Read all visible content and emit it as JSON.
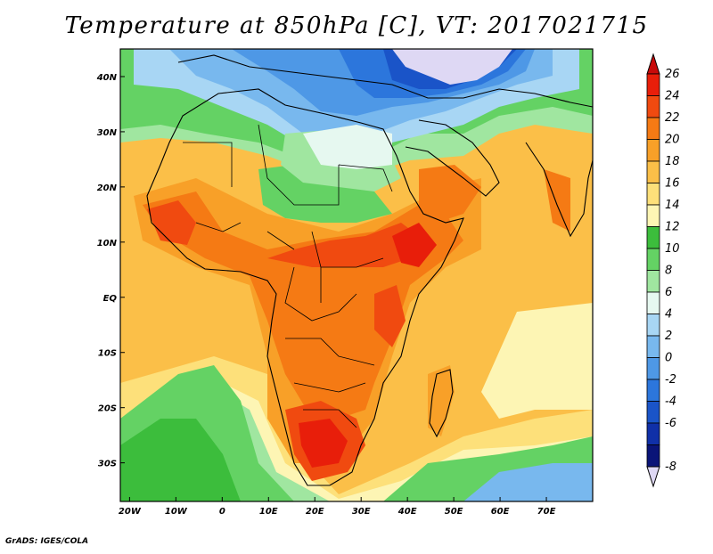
{
  "title": "Temperature at 850hPa [C], VT: 2017021715",
  "footer": "GrADS: IGES/COLA",
  "map": {
    "lon_range": [
      -22,
      80
    ],
    "lat_range": [
      -37,
      45
    ],
    "lon_ticks": [
      {
        "value": -20,
        "label": "20W"
      },
      {
        "value": -10,
        "label": "10W"
      },
      {
        "value": 0,
        "label": "0"
      },
      {
        "value": 10,
        "label": "10E"
      },
      {
        "value": 20,
        "label": "20E"
      },
      {
        "value": 30,
        "label": "30E"
      },
      {
        "value": 40,
        "label": "40E"
      },
      {
        "value": 50,
        "label": "50E"
      },
      {
        "value": 60,
        "label": "60E"
      },
      {
        "value": 70,
        "label": "70E"
      }
    ],
    "lat_ticks": [
      {
        "value": 40,
        "label": "40N"
      },
      {
        "value": 30,
        "label": "30N"
      },
      {
        "value": 20,
        "label": "20N"
      },
      {
        "value": 10,
        "label": "10N"
      },
      {
        "value": 0,
        "label": "EQ"
      },
      {
        "value": -10,
        "label": "10S"
      },
      {
        "value": -20,
        "label": "20S"
      },
      {
        "value": -30,
        "label": "30S"
      }
    ]
  },
  "colorbar": {
    "levels": [
      {
        "label": "26",
        "color": "#e81e0a"
      },
      {
        "label": "24",
        "color": "#f04a10"
      },
      {
        "label": "22",
        "color": "#f57a14"
      },
      {
        "label": "20",
        "color": "#f8a028"
      },
      {
        "label": "18",
        "color": "#fbbf48"
      },
      {
        "label": "16",
        "color": "#fde07a"
      },
      {
        "label": "14",
        "color": "#fdf5b4"
      },
      {
        "label": "12",
        "color": "#3cbd3c"
      },
      {
        "label": "10",
        "color": "#64d264"
      },
      {
        "label": "8",
        "color": "#a0e6a0"
      },
      {
        "label": "6",
        "color": "#e6f8f0"
      },
      {
        "label": "4",
        "color": "#a8d6f4"
      },
      {
        "label": "2",
        "color": "#78b8ee"
      },
      {
        "label": "0",
        "color": "#4e98e6"
      },
      {
        "label": "-2",
        "color": "#2c76dc"
      },
      {
        "label": "-4",
        "color": "#1a54c8"
      },
      {
        "label": "-6",
        "color": "#1030a8"
      },
      {
        "label": "-8",
        "color": "#0a1478"
      }
    ],
    "top_color": "#c80a0a",
    "bottom_color": "#ded8f4"
  }
}
